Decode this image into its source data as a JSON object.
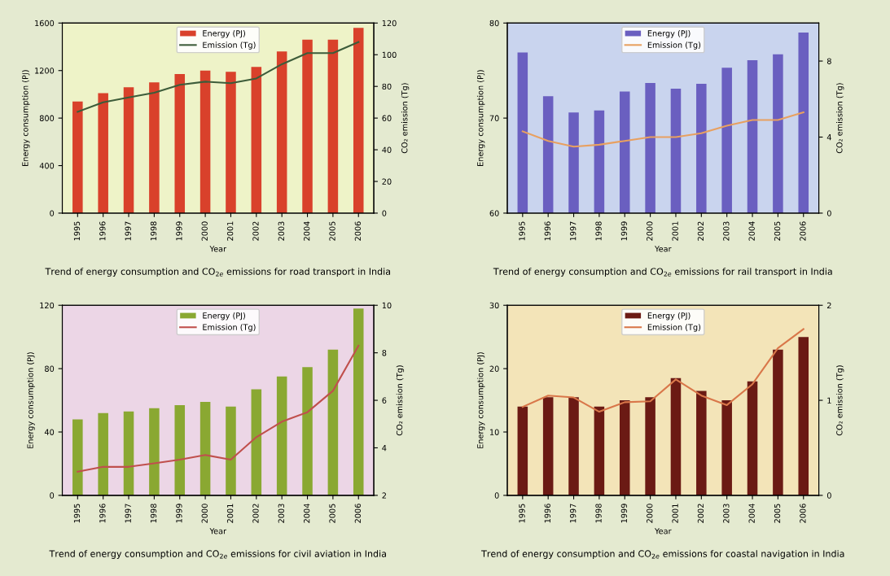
{
  "chart_data": [
    {
      "type": "bar",
      "title": "Trend of energy consumption and CO$_{2e}$ emissions for road transport in India",
      "xlabel": "Year",
      "ylabel": "Energy consumption (PJ)",
      "y2label": "CO₂ emission (Tg)",
      "legend": "top",
      "grid": false,
      "categories": [
        "1995",
        "1996",
        "1997",
        "1998",
        "1999",
        "2000",
        "2001",
        "2002",
        "2003",
        "2004",
        "2005",
        "2006"
      ],
      "ylim": [
        0,
        1600
      ],
      "yticks": [
        0,
        400,
        800,
        1200,
        1600
      ],
      "y2lim": [
        0,
        120
      ],
      "y2ticks": [
        0,
        20,
        40,
        60,
        80,
        100,
        120
      ],
      "series": [
        {
          "name": "Energy (PJ)",
          "color": "#d9412b",
          "values": [
            940,
            1010,
            1060,
            1100,
            1170,
            1200,
            1190,
            1230,
            1360,
            1460,
            1460,
            1560
          ]
        },
        {
          "name": "Emission (Tg)",
          "type": "line",
          "axis": "y2",
          "color": "#3d5c3a",
          "values": [
            64,
            70,
            73,
            76,
            81,
            83,
            82,
            85,
            94,
            101,
            101,
            108
          ]
        }
      ]
    },
    {
      "type": "bar",
      "title": "Trend of energy consumption and CO$_{2e}$ emissions for rail transport in India",
      "xlabel": "Year",
      "ylabel": "Energy consumption (PJ)",
      "y2label": "CO₂ emission (Tg)",
      "legend": "top",
      "grid": false,
      "categories": [
        "1995",
        "1996",
        "1997",
        "1998",
        "1999",
        "2000",
        "2001",
        "2002",
        "2003",
        "2004",
        "2005",
        "2006"
      ],
      "ylim": [
        60,
        80
      ],
      "yticks": [
        60,
        70,
        80
      ],
      "y2lim": [
        0,
        10
      ],
      "y2ticks": [
        0,
        4,
        8
      ],
      "series": [
        {
          "name": "Energy (PJ)",
          "color": "#6a5fc0",
          "values": [
            76.9,
            72.3,
            70.6,
            70.8,
            72.8,
            73.7,
            73.1,
            73.6,
            75.3,
            76.1,
            76.7,
            79
          ]
        },
        {
          "name": "Emission (Tg)",
          "type": "line",
          "axis": "y2",
          "color": "#e8a060",
          "values": [
            4.3,
            3.8,
            3.5,
            3.6,
            3.8,
            4.0,
            4.0,
            4.2,
            4.6,
            4.9,
            4.9,
            5.3
          ]
        }
      ]
    },
    {
      "type": "bar",
      "title": "Trend of energy consumption and CO$_{2e}$ emissions for civil aviation in India",
      "xlabel": "Year",
      "ylabel": "Energy consumption (PJ)",
      "y2label": "CO₂ emission (Tg)",
      "legend": "top",
      "grid": false,
      "categories": [
        "1995",
        "1996",
        "1997",
        "1998",
        "1999",
        "2000",
        "2001",
        "2002",
        "2003",
        "2004",
        "2005",
        "2006"
      ],
      "ylim": [
        0,
        120
      ],
      "yticks": [
        0,
        40,
        80,
        120
      ],
      "y2lim": [
        2,
        10
      ],
      "y2ticks": [
        2,
        4,
        6,
        8,
        10
      ],
      "series": [
        {
          "name": "Energy (PJ)",
          "color": "#8aa832",
          "values": [
            48,
            52,
            53,
            55,
            57,
            59,
            56,
            67,
            75,
            81,
            92,
            118
          ]
        },
        {
          "name": "Emission (Tg)",
          "type": "line",
          "axis": "y2",
          "color": "#c0504d",
          "values": [
            3.0,
            3.2,
            3.2,
            3.35,
            3.5,
            3.7,
            3.5,
            4.45,
            5.1,
            5.5,
            6.4,
            8.3
          ]
        }
      ]
    },
    {
      "type": "bar",
      "title": "Trend of energy consumption and CO$_{2e}$ emissions for coastal navigation in India",
      "xlabel": "Year",
      "ylabel": "Energy consumption (PJ)",
      "y2label": "CO₂ emission (Tg)",
      "legend": "top",
      "grid": false,
      "categories": [
        "1995",
        "1996",
        "1997",
        "1998",
        "1999",
        "2000",
        "2001",
        "2002",
        "2003",
        "2004",
        "2005",
        "2006"
      ],
      "ylim": [
        0,
        30
      ],
      "yticks": [
        0,
        10,
        20,
        30
      ],
      "y2lim": [
        0,
        2
      ],
      "y2ticks": [
        0,
        1,
        2
      ],
      "series": [
        {
          "name": "Energy (PJ)",
          "color": "#6b1a14",
          "values": [
            14,
            15.5,
            15.5,
            14,
            15,
            15.5,
            18.5,
            16.5,
            15,
            18,
            23,
            25
          ]
        },
        {
          "name": "Emission (Tg)",
          "type": "line",
          "axis": "y2",
          "color": "#d9774a",
          "values": [
            0.93,
            1.05,
            1.03,
            0.88,
            0.98,
            0.99,
            1.22,
            1.05,
            0.95,
            1.17,
            1.55,
            1.75
          ]
        }
      ]
    }
  ]
}
